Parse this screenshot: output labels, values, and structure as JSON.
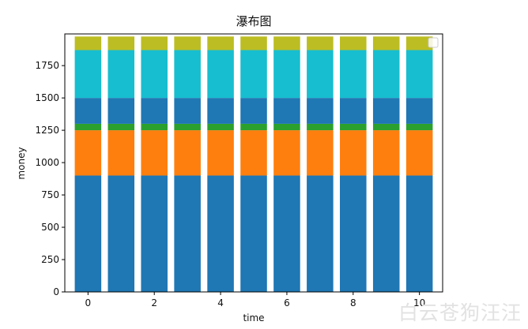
{
  "chart_data": {
    "type": "bar",
    "stacked": true,
    "title": "瀑布图",
    "xlabel": "time",
    "ylabel": "money",
    "categories": [
      0,
      1,
      2,
      3,
      4,
      5,
      6,
      7,
      8,
      9,
      10
    ],
    "xticks": [
      "0",
      "2",
      "4",
      "6",
      "8",
      "10"
    ],
    "yticks": [
      "0",
      "250",
      "500",
      "750",
      "1000",
      "1250",
      "1500",
      "1750"
    ],
    "xlim": [
      -0.7,
      10.7
    ],
    "ylim": [
      0,
      1995
    ],
    "series": [
      {
        "color": "#1f77b4",
        "values": [
          900,
          900,
          900,
          900,
          900,
          900,
          900,
          900,
          900,
          900,
          900
        ]
      },
      {
        "color": "#ff7f0e",
        "values": [
          350,
          350,
          350,
          350,
          350,
          350,
          350,
          350,
          350,
          350,
          350
        ]
      },
      {
        "color": "#2ca02c",
        "values": [
          50,
          50,
          50,
          50,
          50,
          50,
          50,
          50,
          50,
          50,
          50
        ]
      },
      {
        "color": "#1f77b4",
        "values": [
          200,
          200,
          200,
          200,
          200,
          200,
          200,
          200,
          200,
          200,
          200
        ]
      },
      {
        "color": "#17becf",
        "values": [
          370,
          370,
          370,
          370,
          370,
          370,
          370,
          370,
          370,
          370,
          370
        ]
      },
      {
        "color": "#bcbd22",
        "values": [
          105,
          105,
          105,
          105,
          105,
          105,
          105,
          105,
          105,
          105,
          105
        ]
      }
    ],
    "legend": "top-right",
    "grid": false
  },
  "watermark": "白云苍狗汪汪"
}
